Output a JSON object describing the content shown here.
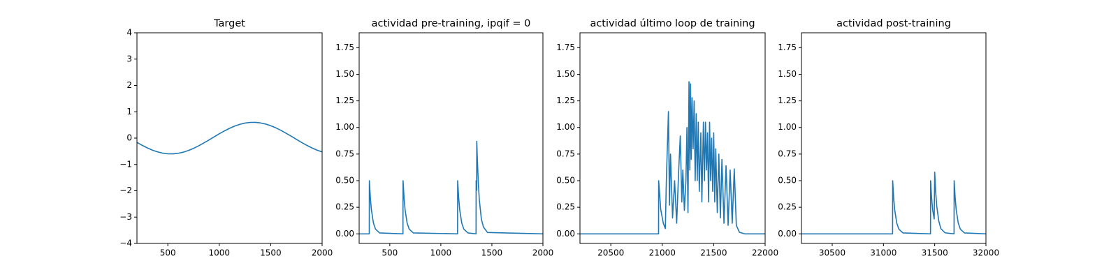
{
  "chart_data": [
    {
      "type": "line",
      "title": "Target",
      "x": [
        200,
        250,
        300,
        350,
        400,
        450,
        500,
        550,
        600,
        650,
        700,
        750,
        800,
        850,
        900,
        950,
        1000,
        1050,
        1100,
        1150,
        1200,
        1250,
        1300,
        1350,
        1400,
        1450,
        1500,
        1550,
        1600,
        1650,
        1700,
        1750,
        1800,
        1850,
        1900,
        1950,
        2000
      ],
      "values": [
        -0.163,
        -0.272,
        -0.371,
        -0.456,
        -0.524,
        -0.571,
        -0.596,
        -0.598,
        -0.577,
        -0.535,
        -0.471,
        -0.39,
        -0.293,
        -0.185,
        -0.071,
        0.047,
        0.163,
        0.272,
        0.371,
        0.456,
        0.524,
        0.571,
        0.596,
        0.598,
        0.577,
        0.535,
        0.471,
        0.39,
        0.293,
        0.185,
        0.071,
        -0.047,
        -0.163,
        -0.272,
        -0.371,
        -0.456,
        -0.524
      ],
      "color": "#1f77b4",
      "xlim": [
        200,
        2000
      ],
      "xticks": [
        500,
        1000,
        1500,
        2000
      ],
      "ylim": [
        -4,
        4
      ],
      "yticks": [
        {
          "value": -4,
          "label": "−4"
        },
        {
          "value": -3,
          "label": "−3"
        },
        {
          "value": -2,
          "label": "−2"
        },
        {
          "value": -1,
          "label": "−1"
        },
        0,
        1,
        2,
        3,
        4
      ]
    },
    {
      "type": "line",
      "title": "actividad pre-training, ipqif = 0",
      "x": [
        200,
        299,
        300,
        310,
        320,
        340,
        360,
        400,
        629,
        630,
        640,
        650,
        670,
        690,
        730,
        1164,
        1165,
        1175,
        1185,
        1205,
        1225,
        1265,
        1345,
        1346,
        1351,
        1352,
        1357,
        1367,
        1377,
        1397,
        1417,
        1457,
        2000
      ],
      "values": [
        0,
        0,
        0.5,
        0.335,
        0.225,
        0.101,
        0.045,
        0.009,
        0,
        0.5,
        0.335,
        0.225,
        0.101,
        0.045,
        0.009,
        0,
        0.5,
        0.335,
        0.225,
        0.101,
        0.045,
        0.009,
        0,
        0.5,
        0.41,
        0.87,
        0.72,
        0.48,
        0.32,
        0.14,
        0.065,
        0.013,
        0
      ],
      "color": "#1f77b4",
      "xlim": [
        200,
        2000
      ],
      "xticks": [
        500,
        1000,
        1500,
        2000
      ],
      "ylim": [
        -0.09,
        1.89
      ],
      "yticks": [
        {
          "value": 0,
          "label": "0.00"
        },
        {
          "value": 0.25,
          "label": "0.25"
        },
        {
          "value": 0.5,
          "label": "0.50"
        },
        {
          "value": 0.75,
          "label": "0.75"
        },
        {
          "value": 1,
          "label": "1.00"
        },
        {
          "value": 1.25,
          "label": "1.25"
        },
        {
          "value": 1.5,
          "label": "1.50"
        },
        {
          "value": 1.75,
          "label": "1.75"
        }
      ]
    },
    {
      "type": "line",
      "title": "actividad último loop de training",
      "x": [
        20200,
        20964,
        20965,
        20985,
        21010,
        21030,
        21040,
        21060,
        21070,
        21080,
        21100,
        21120,
        21140,
        21160,
        21175,
        21190,
        21200,
        21215,
        21230,
        21240,
        21250,
        21260,
        21268,
        21275,
        21282,
        21290,
        21300,
        21310,
        21320,
        21330,
        21340,
        21350,
        21360,
        21375,
        21385,
        21400,
        21410,
        21420,
        21430,
        21440,
        21450,
        21460,
        21470,
        21480,
        21490,
        21500,
        21510,
        21520,
        21535,
        21550,
        21565,
        21580,
        21600,
        21620,
        21640,
        21660,
        21680,
        21700,
        21720,
        21750,
        21800,
        22000
      ],
      "values": [
        0,
        0,
        0.5,
        0.23,
        0.1,
        0.05,
        0.51,
        1.15,
        0.27,
        0.75,
        0.15,
        0.5,
        0.1,
        0.6,
        0.92,
        0.3,
        0.6,
        0.22,
        0.5,
        1.0,
        0.2,
        1.43,
        0.6,
        1.41,
        0.7,
        1.28,
        0.8,
        1.25,
        0.5,
        1.13,
        0.5,
        1.05,
        0.4,
        0.95,
        0.3,
        1.05,
        0.5,
        1.05,
        0.6,
        0.95,
        0.3,
        1.05,
        0.5,
        0.9,
        0.4,
        0.95,
        0.3,
        0.8,
        0.2,
        0.75,
        0.15,
        0.7,
        0.1,
        0.64,
        0.08,
        0.6,
        0.1,
        0.61,
        0.08,
        0.015,
        0,
        0
      ],
      "color": "#1f77b4",
      "xlim": [
        20200,
        22000
      ],
      "xticks": [
        20500,
        21000,
        21500,
        22000
      ],
      "ylim": [
        -0.09,
        1.89
      ],
      "yticks": [
        {
          "value": 0,
          "label": "0.00"
        },
        {
          "value": 0.25,
          "label": "0.25"
        },
        {
          "value": 0.5,
          "label": "0.50"
        },
        {
          "value": 0.75,
          "label": "0.75"
        },
        {
          "value": 1,
          "label": "1.00"
        },
        {
          "value": 1.25,
          "label": "1.25"
        },
        {
          "value": 1.5,
          "label": "1.50"
        },
        {
          "value": 1.75,
          "label": "1.75"
        }
      ]
    },
    {
      "type": "line",
      "title": "actividad post-training",
      "x": [
        30200,
        31089,
        31090,
        31100,
        31110,
        31130,
        31150,
        31190,
        31459,
        31460,
        31470,
        31480,
        31495,
        31500,
        31510,
        31520,
        31540,
        31560,
        31600,
        31689,
        31690,
        31700,
        31710,
        31730,
        31750,
        31790,
        32000
      ],
      "values": [
        0,
        0,
        0.5,
        0.335,
        0.225,
        0.101,
        0.045,
        0.009,
        0,
        0.5,
        0.335,
        0.225,
        0.14,
        0.58,
        0.39,
        0.26,
        0.12,
        0.05,
        0.01,
        0,
        0.5,
        0.335,
        0.225,
        0.101,
        0.045,
        0.009,
        0
      ],
      "color": "#1f77b4",
      "xlim": [
        30200,
        32000
      ],
      "xticks": [
        30500,
        31000,
        31500,
        32000
      ],
      "ylim": [
        -0.09,
        1.89
      ],
      "yticks": [
        {
          "value": 0,
          "label": "0.00"
        },
        {
          "value": 0.25,
          "label": "0.25"
        },
        {
          "value": 0.5,
          "label": "0.50"
        },
        {
          "value": 0.75,
          "label": "0.75"
        },
        {
          "value": 1,
          "label": "1.00"
        },
        {
          "value": 1.25,
          "label": "1.25"
        },
        {
          "value": 1.5,
          "label": "1.50"
        },
        {
          "value": 1.75,
          "label": "1.75"
        }
      ]
    }
  ]
}
